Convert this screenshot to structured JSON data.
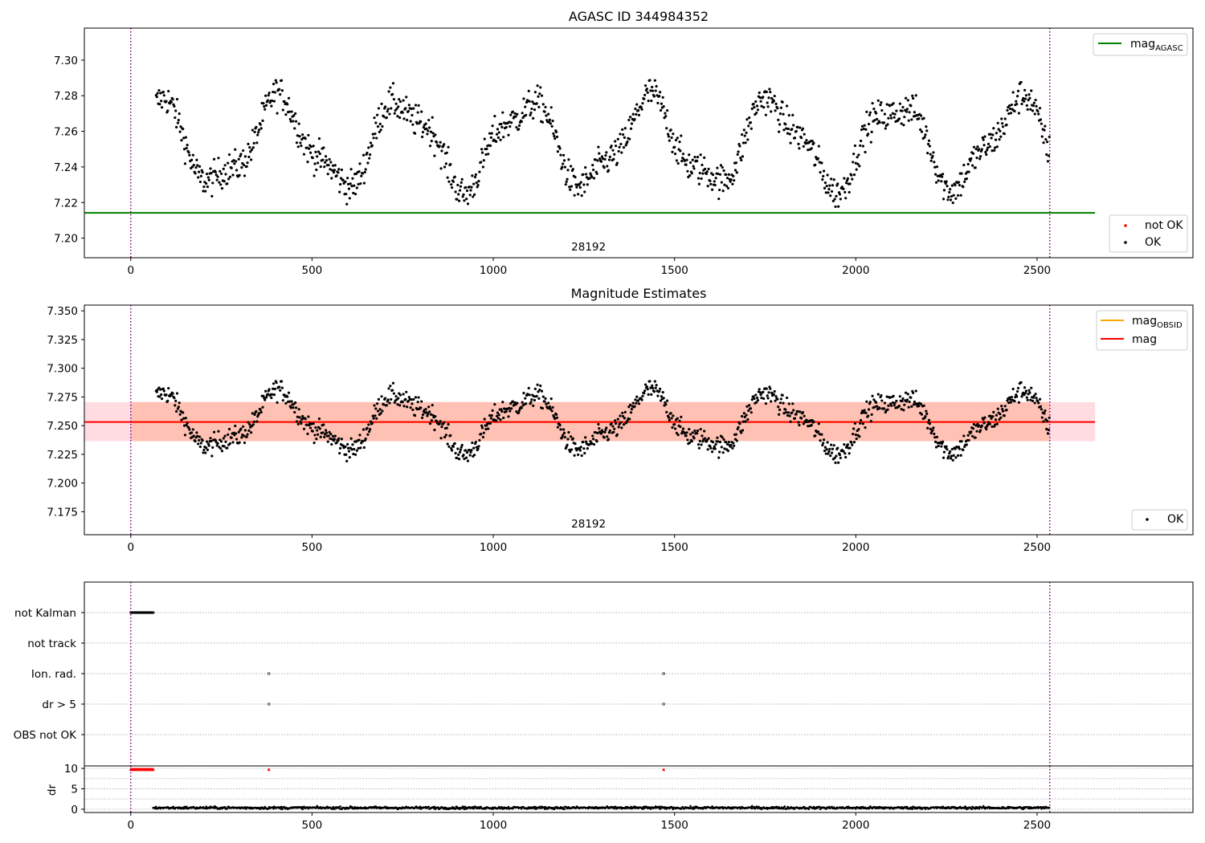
{
  "colors": {
    "ok": "#000000",
    "not_ok": "#ff0000",
    "agasc_line": "#008000",
    "obsid_line": "#ffa500",
    "mag_line": "#ff0000",
    "band_outer": "#ffc0cb",
    "band_inner": "#ffa07a",
    "obs_boundary": "#800080",
    "grid": "#b0b0b0"
  },
  "chart_data": [
    {
      "type": "scatter",
      "title": "AGASC ID 344984352",
      "xlim": [
        -128,
        2930
      ],
      "ylim": [
        7.189,
        7.318
      ],
      "xticks": [
        0,
        500,
        1000,
        1500,
        2000,
        2500
      ],
      "xtick_labels": [
        "0",
        "500",
        "1000",
        "1500",
        "2000",
        "2500"
      ],
      "yticks": [
        7.2,
        7.22,
        7.24,
        7.26,
        7.28,
        7.3
      ],
      "ytick_labels": [
        "7.20",
        "7.22",
        "7.24",
        "7.26",
        "7.28",
        "7.30"
      ],
      "reference_lines": [
        {
          "name": "mag_AGASC",
          "y": 7.2142,
          "x_range": [
            -128,
            2660
          ]
        }
      ],
      "obs_boundaries": [
        0,
        2535
      ],
      "obsid_annotation": {
        "text": "28192",
        "x": 1265
      },
      "series": [
        {
          "name": "OK",
          "x_range": [
            70,
            2535
          ],
          "mean": 7.2532,
          "amplitude": 0.0225,
          "period_points": 340,
          "noise": 0.0045
        }
      ],
      "legends": [
        {
          "location": "upper right",
          "entries": [
            {
              "label": "mag",
              "subscript": "AGASC",
              "kind": "line",
              "color_key": "agasc_line"
            }
          ]
        },
        {
          "location": "lower right",
          "entries": [
            {
              "label": "not OK",
              "kind": "dot",
              "color_key": "not_ok"
            },
            {
              "label": "OK",
              "kind": "dot",
              "color_key": "ok"
            }
          ]
        }
      ]
    },
    {
      "type": "scatter",
      "title": "Magnitude Estimates",
      "xlim": [
        -128,
        2930
      ],
      "ylim": [
        7.155,
        7.355
      ],
      "xticks": [
        0,
        500,
        1000,
        1500,
        2000,
        2500
      ],
      "xtick_labels": [
        "0",
        "500",
        "1000",
        "1500",
        "2000",
        "2500"
      ],
      "yticks": [
        7.175,
        7.2,
        7.225,
        7.25,
        7.275,
        7.3,
        7.325,
        7.35
      ],
      "ytick_labels": [
        "7.175",
        "7.200",
        "7.225",
        "7.250",
        "7.275",
        "7.300",
        "7.325",
        "7.350"
      ],
      "reference_lines": [
        {
          "name": "mag_OBSID",
          "y": 7.2532,
          "x_range": [
            0,
            2535
          ]
        },
        {
          "name": "mag",
          "y": 7.2532,
          "x_range": [
            -128,
            2660
          ]
        }
      ],
      "bands": [
        {
          "name": "mag_band",
          "y_range": [
            7.2365,
            7.2705
          ],
          "x_range": [
            -128,
            2660
          ]
        },
        {
          "name": "obsid_band",
          "y_range": [
            7.2365,
            7.2705
          ],
          "x_range": [
            0,
            2535
          ]
        }
      ],
      "obs_boundaries": [
        0,
        2535
      ],
      "obsid_annotation": {
        "text": "28192",
        "x": 1265
      },
      "series": [
        {
          "name": "OK",
          "x_range": [
            70,
            2535
          ],
          "mean": 7.2532,
          "amplitude": 0.0225,
          "period_points": 340,
          "noise": 0.0045
        }
      ],
      "legends": [
        {
          "location": "upper right",
          "entries": [
            {
              "label": "mag",
              "subscript": "OBSID",
              "kind": "line",
              "color_key": "obsid_line"
            },
            {
              "label": "mag",
              "kind": "line",
              "color_key": "mag_line"
            }
          ]
        },
        {
          "location": "lower right",
          "entries": [
            {
              "label": "OK",
              "kind": "dot",
              "color_key": "ok"
            }
          ]
        }
      ]
    },
    {
      "type": "scatter",
      "title": "",
      "xlim": [
        -128,
        2930
      ],
      "categories": [
        "not Kalman",
        "not track",
        "Ion. rad.",
        "dr > 5",
        "OBS not OK"
      ],
      "flags": [
        {
          "category": "not Kalman",
          "x_range": [
            0,
            62
          ],
          "step": 2
        },
        {
          "category": "Ion. rad.",
          "x": [
            381,
            1470
          ]
        },
        {
          "category": "dr > 5",
          "x": [
            381,
            1470
          ]
        }
      ],
      "obs_boundaries": [
        0,
        2535
      ]
    },
    {
      "type": "scatter",
      "title": "",
      "ylabel": "dr",
      "xlim": [
        -128,
        2930
      ],
      "ylim": [
        -0.8,
        10.6
      ],
      "xticks": [
        0,
        500,
        1000,
        1500,
        2000,
        2500
      ],
      "xtick_labels": [
        "0",
        "500",
        "1000",
        "1500",
        "2000",
        "2500"
      ],
      "yticks": [
        0,
        5,
        10
      ],
      "ytick_labels": [
        "0",
        "5",
        "10"
      ],
      "clipped_not_ok": {
        "y": 9.8,
        "x_range": [
          0,
          62
        ],
        "step": 2,
        "extra_x": [
          381,
          1470
        ]
      },
      "dr_series": {
        "x_range": [
          62,
          2535
        ],
        "base": 0.35,
        "noise": 0.25
      },
      "obs_boundaries": [
        0,
        2535
      ]
    }
  ]
}
